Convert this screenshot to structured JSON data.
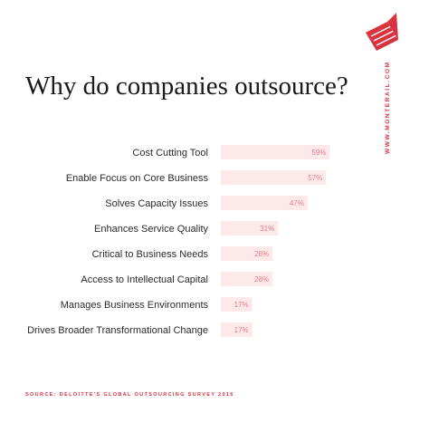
{
  "chart_data": {
    "type": "bar",
    "orientation": "horizontal",
    "title": "Why do companies outsource?",
    "categories": [
      "Cost Cutting Tool",
      "Enable Focus on Core Business",
      "Solves Capacity Issues",
      "Enhances Service Quality",
      "Critical to Business Needs",
      "Access to Intellectual Capital",
      "Manages Business Environments",
      "Drives Broader Transformational Change"
    ],
    "values": [
      59,
      57,
      47,
      31,
      28,
      28,
      17,
      17
    ],
    "value_labels": [
      "59%",
      "57%",
      "47%",
      "31%",
      "28%",
      "28%",
      "17%",
      "17%"
    ],
    "color": "#fde8ea",
    "source": "SOURCE: DELOITTE'S GLOBAL OUTSOURCING SURVEY 2016",
    "watermark": "WWW.MONTERAIL.COM"
  }
}
